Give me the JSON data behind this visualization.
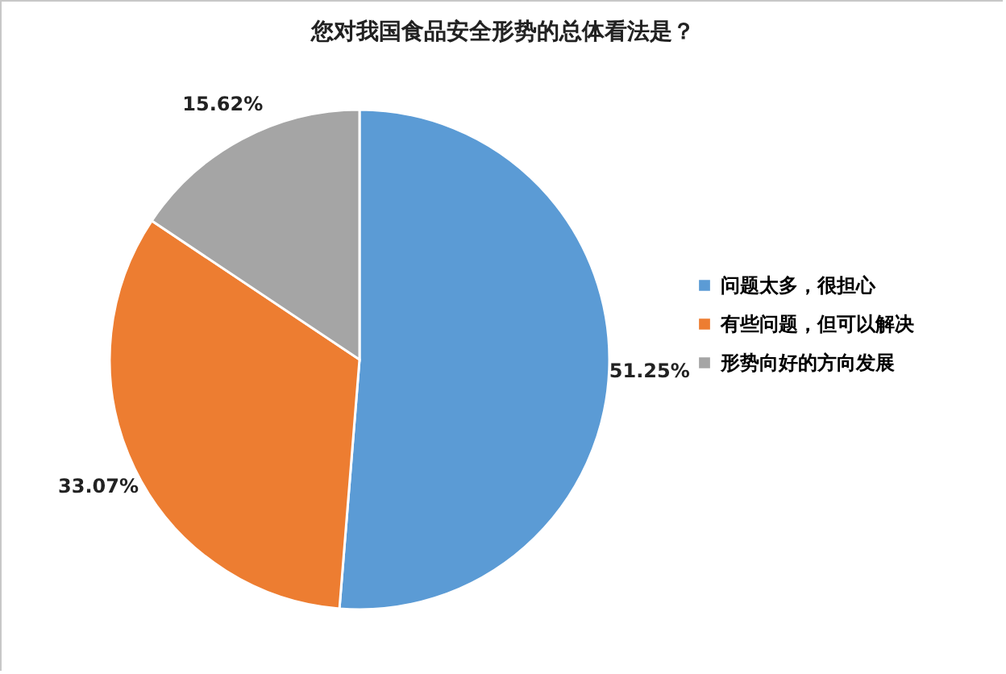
{
  "chart_data": {
    "type": "pie",
    "title": "您对我国食品安全形势的总体看法是？",
    "categories": [
      "问题太多，很担心",
      "有些问题，但可以解决",
      "形势向好的方向发展"
    ],
    "values": [
      51.25,
      33.07,
      15.62
    ],
    "colors": [
      "#5b9bd5",
      "#ed7d31",
      "#a5a5a5"
    ],
    "value_labels": [
      "51.25%",
      "33.07%",
      "15.62%"
    ],
    "legend": "right"
  }
}
